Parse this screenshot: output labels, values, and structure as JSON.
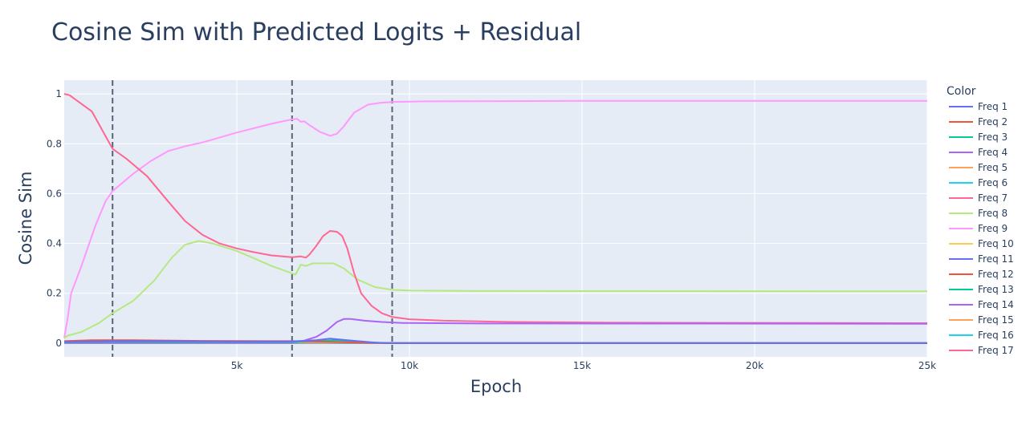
{
  "chart_data": {
    "type": "line",
    "title": "Cosine Sim with Predicted Logits + Residual",
    "xlabel": "Epoch",
    "ylabel": "Cosine Sim",
    "xlim": [
      0,
      25000
    ],
    "ylim": [
      -0.055,
      1.055
    ],
    "x_ticks": [
      {
        "value": 5000,
        "label": "5k"
      },
      {
        "value": 10000,
        "label": "10k"
      },
      {
        "value": 15000,
        "label": "15k"
      },
      {
        "value": 20000,
        "label": "20k"
      },
      {
        "value": 25000,
        "label": "25k"
      }
    ],
    "y_ticks": [
      {
        "value": 0,
        "label": "0"
      },
      {
        "value": 0.2,
        "label": "0.2"
      },
      {
        "value": 0.4,
        "label": "0.4"
      },
      {
        "value": 0.6,
        "label": "0.6"
      },
      {
        "value": 0.8,
        "label": "0.8"
      },
      {
        "value": 1,
        "label": "1"
      }
    ],
    "grid": true,
    "legend": {
      "title": "Color",
      "position": "right"
    },
    "vlines": [
      1400,
      6600,
      9500
    ],
    "series": [
      {
        "name": "Freq 1",
        "color": "#636efa",
        "points": [
          [
            0,
            0.005
          ],
          [
            1400,
            0.008
          ],
          [
            3000,
            0.008
          ],
          [
            5000,
            0.006
          ],
          [
            6600,
            0.007
          ],
          [
            7300,
            0.012
          ],
          [
            7700,
            0.018
          ],
          [
            8200,
            0.012
          ],
          [
            9000,
            0.002
          ],
          [
            9500,
            0
          ],
          [
            25000,
            0
          ]
        ]
      },
      {
        "name": "Freq 2",
        "color": "#EF553B",
        "points": [
          [
            0,
            0.008
          ],
          [
            800,
            0.012
          ],
          [
            2000,
            0.012
          ],
          [
            4000,
            0.009
          ],
          [
            6000,
            0.008
          ],
          [
            6600,
            0.008
          ],
          [
            7500,
            0.006
          ],
          [
            8500,
            0.002
          ],
          [
            9300,
            0
          ],
          [
            25000,
            0
          ]
        ]
      },
      {
        "name": "Freq 3",
        "color": "#00cc96",
        "points": [
          [
            0,
            0.004
          ],
          [
            1400,
            0.006
          ],
          [
            4000,
            0.005
          ],
          [
            6600,
            0.005
          ],
          [
            7400,
            0.009
          ],
          [
            7900,
            0.012
          ],
          [
            8400,
            0.007
          ],
          [
            9200,
            0.001
          ],
          [
            9600,
            0
          ],
          [
            25000,
            0
          ]
        ]
      },
      {
        "name": "Freq 4",
        "color": "#ab63fa",
        "points": [
          [
            0,
            0.002
          ],
          [
            6600,
            0.002
          ],
          [
            6900,
            0.008
          ],
          [
            7300,
            0.025
          ],
          [
            7600,
            0.05
          ],
          [
            7900,
            0.085
          ],
          [
            8100,
            0.097
          ],
          [
            8300,
            0.097
          ],
          [
            8700,
            0.09
          ],
          [
            9200,
            0.085
          ],
          [
            9800,
            0.081
          ],
          [
            12000,
            0.079
          ],
          [
            25000,
            0.078
          ]
        ]
      },
      {
        "name": "Freq 5",
        "color": "#FFA15A",
        "points": [
          [
            0,
            0.003
          ],
          [
            1400,
            0.005
          ],
          [
            4000,
            0.004
          ],
          [
            6600,
            0.004
          ],
          [
            7500,
            0.005
          ],
          [
            8500,
            0.002
          ],
          [
            9300,
            0
          ],
          [
            25000,
            0
          ]
        ]
      },
      {
        "name": "Freq 6",
        "color": "#19d3f3",
        "points": [
          [
            0,
            0.002
          ],
          [
            3000,
            0.002
          ],
          [
            6600,
            0.002
          ],
          [
            7500,
            0.003
          ],
          [
            8500,
            0.001
          ],
          [
            9300,
            0
          ],
          [
            25000,
            0
          ]
        ]
      },
      {
        "name": "Freq 7",
        "color": "#FF6692",
        "points": [
          [
            0,
            1.0
          ],
          [
            150,
            0.995
          ],
          [
            300,
            0.98
          ],
          [
            800,
            0.93
          ],
          [
            1400,
            0.78
          ],
          [
            1800,
            0.74
          ],
          [
            2400,
            0.67
          ],
          [
            3000,
            0.57
          ],
          [
            3500,
            0.49
          ],
          [
            4000,
            0.435
          ],
          [
            4500,
            0.4
          ],
          [
            5000,
            0.38
          ],
          [
            5500,
            0.365
          ],
          [
            6000,
            0.352
          ],
          [
            6600,
            0.345
          ],
          [
            6850,
            0.348
          ],
          [
            7000,
            0.343
          ],
          [
            7100,
            0.355
          ],
          [
            7300,
            0.39
          ],
          [
            7500,
            0.43
          ],
          [
            7700,
            0.45
          ],
          [
            7900,
            0.447
          ],
          [
            8050,
            0.43
          ],
          [
            8200,
            0.38
          ],
          [
            8400,
            0.28
          ],
          [
            8600,
            0.2
          ],
          [
            8900,
            0.15
          ],
          [
            9200,
            0.12
          ],
          [
            9500,
            0.105
          ],
          [
            10000,
            0.096
          ],
          [
            11000,
            0.09
          ],
          [
            13000,
            0.085
          ],
          [
            16000,
            0.082
          ],
          [
            25000,
            0.08
          ]
        ]
      },
      {
        "name": "Freq 8",
        "color": "#B6E880",
        "points": [
          [
            0,
            0.02
          ],
          [
            100,
            0.03
          ],
          [
            500,
            0.045
          ],
          [
            1000,
            0.08
          ],
          [
            1400,
            0.12
          ],
          [
            2000,
            0.17
          ],
          [
            2600,
            0.25
          ],
          [
            3100,
            0.34
          ],
          [
            3500,
            0.395
          ],
          [
            3900,
            0.41
          ],
          [
            4300,
            0.4
          ],
          [
            5000,
            0.37
          ],
          [
            5500,
            0.34
          ],
          [
            6000,
            0.31
          ],
          [
            6500,
            0.285
          ],
          [
            6600,
            0.28
          ],
          [
            6700,
            0.275
          ],
          [
            6850,
            0.315
          ],
          [
            7000,
            0.31
          ],
          [
            7200,
            0.32
          ],
          [
            7800,
            0.32
          ],
          [
            8100,
            0.3
          ],
          [
            8500,
            0.255
          ],
          [
            9000,
            0.225
          ],
          [
            9500,
            0.214
          ],
          [
            10000,
            0.211
          ],
          [
            12000,
            0.209
          ],
          [
            25000,
            0.208
          ]
        ]
      },
      {
        "name": "Freq 9",
        "color": "#FF97FF",
        "points": [
          [
            0,
            0.02
          ],
          [
            100,
            0.1
          ],
          [
            200,
            0.2
          ],
          [
            500,
            0.31
          ],
          [
            900,
            0.47
          ],
          [
            1200,
            0.57
          ],
          [
            1400,
            0.61
          ],
          [
            2000,
            0.68
          ],
          [
            2500,
            0.73
          ],
          [
            3000,
            0.77
          ],
          [
            3500,
            0.79
          ],
          [
            4000,
            0.805
          ],
          [
            5000,
            0.845
          ],
          [
            6000,
            0.88
          ],
          [
            6600,
            0.898
          ],
          [
            6750,
            0.9
          ],
          [
            6850,
            0.888
          ],
          [
            6950,
            0.89
          ],
          [
            7100,
            0.875
          ],
          [
            7400,
            0.848
          ],
          [
            7700,
            0.832
          ],
          [
            7900,
            0.84
          ],
          [
            8100,
            0.87
          ],
          [
            8400,
            0.925
          ],
          [
            8800,
            0.957
          ],
          [
            9200,
            0.965
          ],
          [
            9600,
            0.968
          ],
          [
            10500,
            0.97
          ],
          [
            15000,
            0.972
          ],
          [
            25000,
            0.972
          ]
        ]
      },
      {
        "name": "Freq 10",
        "color": "#FECB52",
        "points": [
          [
            0,
            0.002
          ],
          [
            4000,
            0.002
          ],
          [
            6600,
            0.002
          ],
          [
            8500,
            0.001
          ],
          [
            9300,
            0
          ],
          [
            25000,
            0
          ]
        ]
      },
      {
        "name": "Freq 11",
        "color": "#636efa",
        "points": [
          [
            0,
            0.001
          ],
          [
            6600,
            0.001
          ],
          [
            9300,
            0
          ],
          [
            25000,
            0
          ]
        ]
      },
      {
        "name": "Freq 12",
        "color": "#EF553B",
        "points": [
          [
            0,
            0.001
          ],
          [
            6600,
            0.001
          ],
          [
            9300,
            0
          ],
          [
            25000,
            0
          ]
        ]
      },
      {
        "name": "Freq 13",
        "color": "#00cc96",
        "points": [
          [
            0,
            0.001
          ],
          [
            6600,
            0.001
          ],
          [
            9300,
            0
          ],
          [
            25000,
            0
          ]
        ]
      },
      {
        "name": "Freq 14",
        "color": "#ab63fa",
        "points": [
          [
            0,
            0.001
          ],
          [
            6600,
            0.001
          ],
          [
            9300,
            0
          ],
          [
            25000,
            0
          ]
        ]
      },
      {
        "name": "Freq 15",
        "color": "#FFA15A",
        "points": [
          [
            0,
            0.001
          ],
          [
            6600,
            0.001
          ],
          [
            9300,
            0
          ],
          [
            25000,
            0
          ]
        ]
      },
      {
        "name": "Freq 16",
        "color": "#19d3f3",
        "points": [
          [
            0,
            0.001
          ],
          [
            6600,
            0.001
          ],
          [
            9300,
            0
          ],
          [
            25000,
            0
          ]
        ]
      },
      {
        "name": "Freq 17",
        "color": "#FF6692",
        "points": [
          [
            0,
            0.001
          ],
          [
            6600,
            0.001
          ],
          [
            9300,
            0
          ],
          [
            25000,
            0
          ]
        ]
      }
    ]
  }
}
